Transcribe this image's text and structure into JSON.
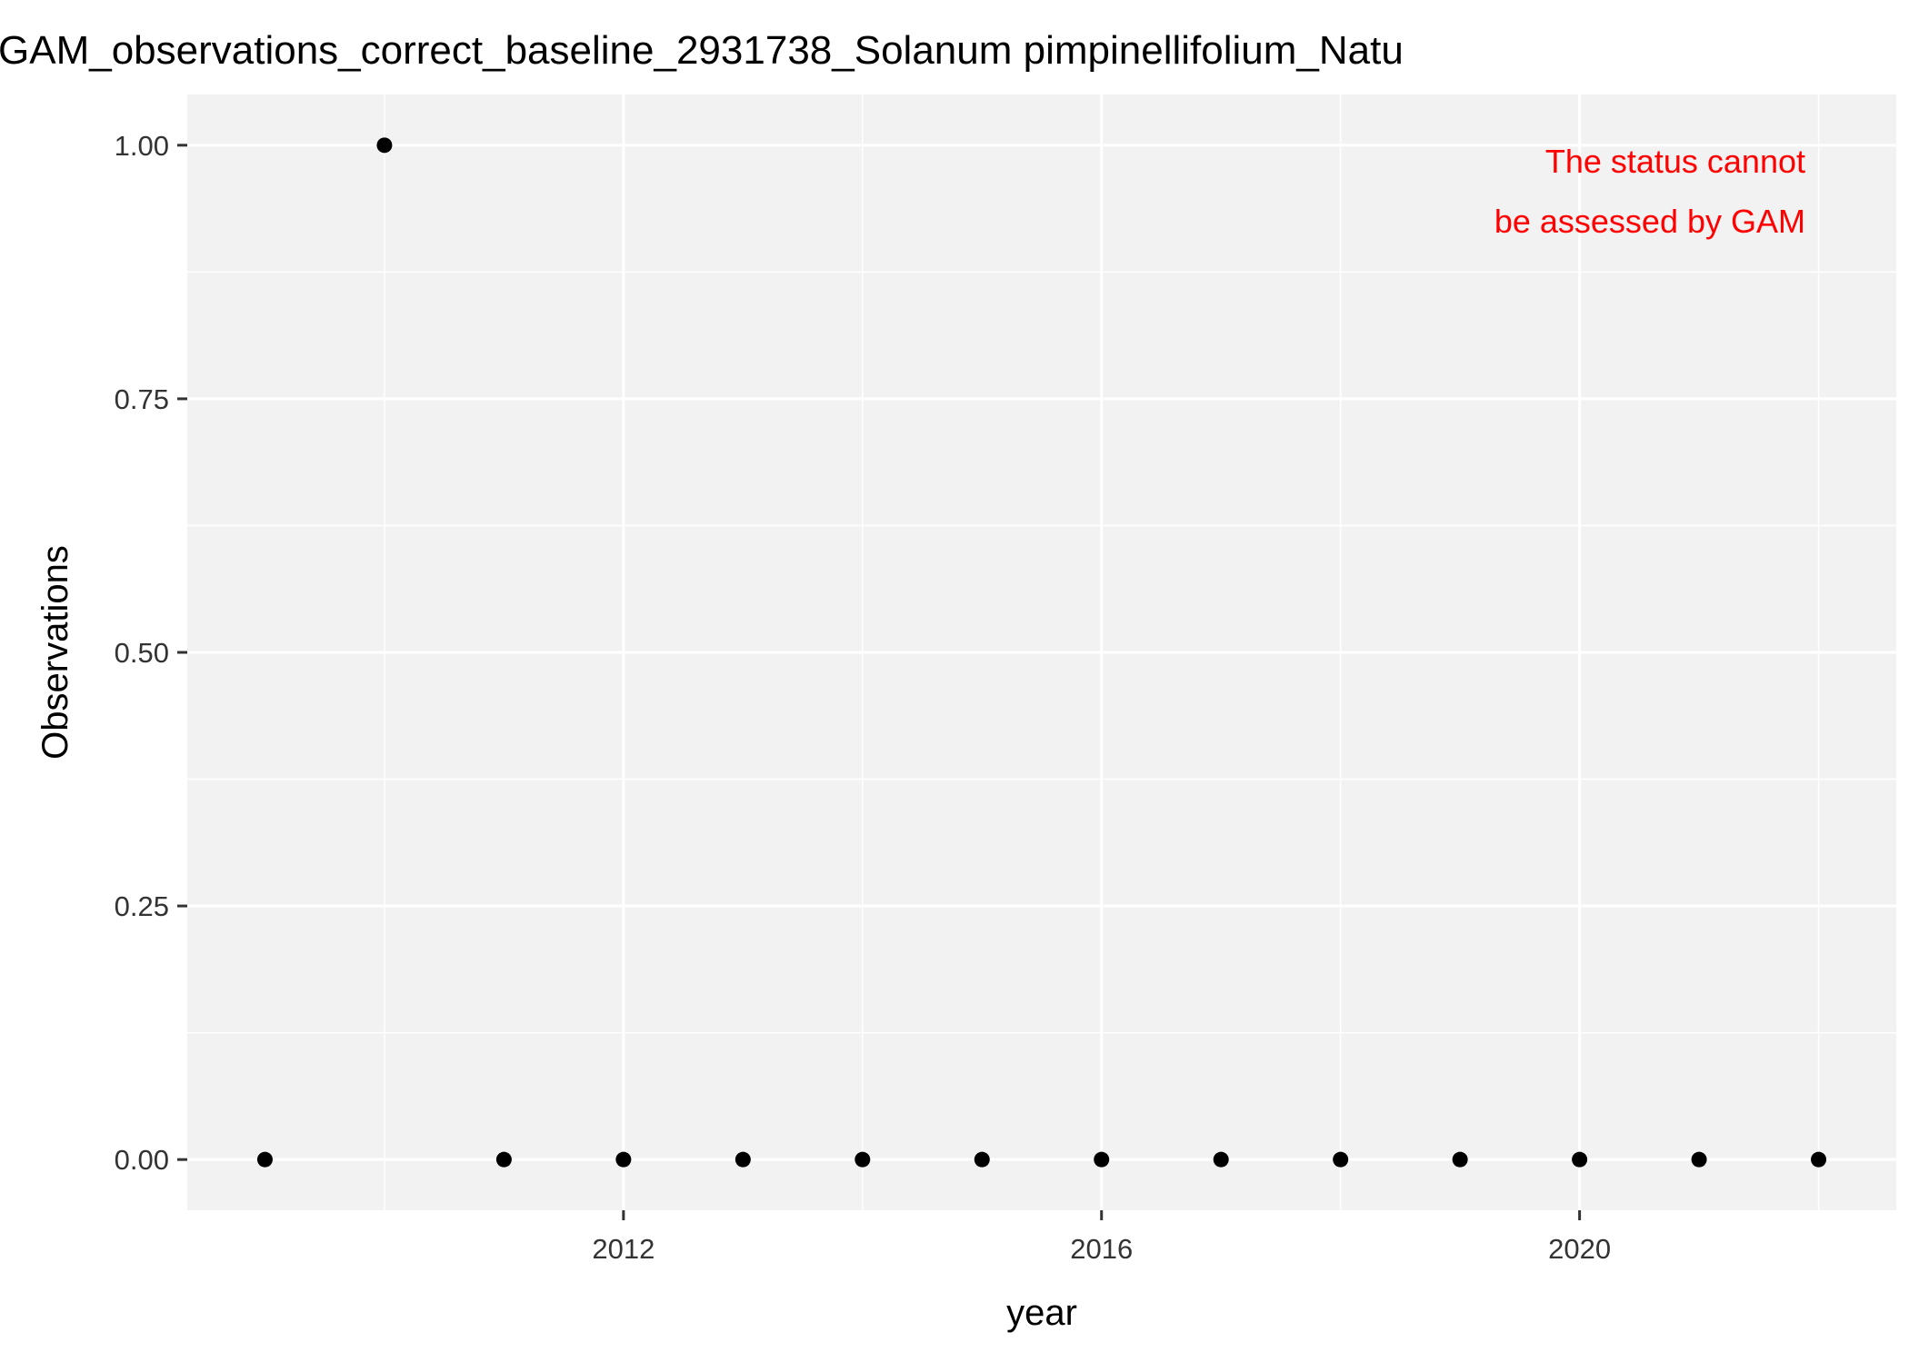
{
  "chart_data": {
    "type": "scatter",
    "title": "GAM_observations_correct_baseline_2931738_Solanum pimpinellifolium_Natu",
    "xlabel": "year",
    "ylabel": "Observations",
    "xlim": [
      2008.35,
      2022.65
    ],
    "ylim": [
      -0.05,
      1.05
    ],
    "x_ticks": [
      2012,
      2016,
      2020
    ],
    "x_tick_labels": [
      "2012",
      "2016",
      "2020"
    ],
    "x_minor_gridlines": [
      2010,
      2014,
      2018,
      2022
    ],
    "y_ticks": [
      0,
      0.25,
      0.5,
      0.75,
      1.0
    ],
    "y_tick_labels": [
      "0.00",
      "0.25",
      "0.50",
      "0.75",
      "1.00"
    ],
    "y_minor_gridlines": [
      0.125,
      0.375,
      0.625,
      0.875
    ],
    "grid": true,
    "legend": "none",
    "series": [
      {
        "x": [
          2009,
          2010,
          2011,
          2012,
          2013,
          2014,
          2015,
          2016,
          2017,
          2018,
          2019,
          2020,
          2021,
          2022
        ],
        "y": [
          0,
          1,
          0,
          0,
          0,
          0,
          0,
          0,
          0,
          0,
          0,
          0,
          0,
          0
        ],
        "color": "#000000"
      }
    ],
    "annotation": {
      "lines": [
        "The status cannot",
        "be assessed by GAM"
      ],
      "color": "#ff0000",
      "placement": "top-right"
    },
    "colors": {
      "panel_background": "#f2f2f2",
      "gridline": "#ffffff",
      "axis_tick": "#333333"
    }
  }
}
